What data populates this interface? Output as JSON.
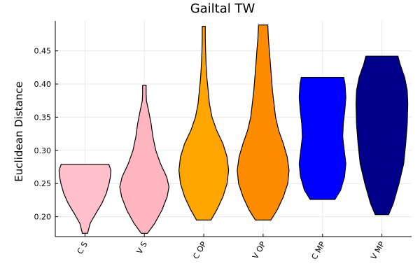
{
  "chart_data": {
    "type": "violin",
    "title": "Gailtal TW",
    "xlabel": "",
    "ylabel": "Euclidean Distance",
    "ylim": [
      0.17,
      0.495
    ],
    "yticks": [
      0.2,
      0.25,
      0.3,
      0.35,
      0.4,
      0.45
    ],
    "ytick_labels": [
      "0.20",
      "0.25",
      "0.30",
      "0.35",
      "0.40",
      "0.45"
    ],
    "grid": true,
    "categories": [
      "C S",
      "V S",
      "C OP",
      "V OP",
      "C MP",
      "V MP"
    ],
    "series": [
      {
        "color": "#ffc0cb",
        "min": 0.175,
        "max": 0.279,
        "profile": [
          [
            0.175,
            0.1
          ],
          [
            0.19,
            0.2
          ],
          [
            0.205,
            0.42
          ],
          [
            0.22,
            0.65
          ],
          [
            0.235,
            0.82
          ],
          [
            0.25,
            0.93
          ],
          [
            0.26,
            0.98
          ],
          [
            0.27,
            1.0
          ],
          [
            0.279,
            0.92
          ]
        ]
      },
      {
        "color": "#ffb6c1",
        "min": 0.175,
        "max": 0.398,
        "profile": [
          [
            0.175,
            0.12
          ],
          [
            0.19,
            0.4
          ],
          [
            0.21,
            0.68
          ],
          [
            0.23,
            0.88
          ],
          [
            0.245,
            0.95
          ],
          [
            0.26,
            0.86
          ],
          [
            0.28,
            0.62
          ],
          [
            0.3,
            0.44
          ],
          [
            0.32,
            0.33
          ],
          [
            0.34,
            0.26
          ],
          [
            0.36,
            0.16
          ],
          [
            0.375,
            0.08
          ],
          [
            0.385,
            0.07
          ],
          [
            0.398,
            0.07
          ]
        ]
      },
      {
        "color": "#ffa500",
        "min": 0.195,
        "max": 0.487,
        "profile": [
          [
            0.195,
            0.28
          ],
          [
            0.21,
            0.5
          ],
          [
            0.23,
            0.74
          ],
          [
            0.25,
            0.9
          ],
          [
            0.27,
            0.96
          ],
          [
            0.29,
            0.9
          ],
          [
            0.31,
            0.74
          ],
          [
            0.33,
            0.5
          ],
          [
            0.35,
            0.32
          ],
          [
            0.37,
            0.22
          ],
          [
            0.39,
            0.17
          ],
          [
            0.41,
            0.12
          ],
          [
            0.43,
            0.09
          ],
          [
            0.45,
            0.07
          ],
          [
            0.47,
            0.06
          ],
          [
            0.487,
            0.06
          ]
        ]
      },
      {
        "color": "#ff8c00",
        "min": 0.195,
        "max": 0.489,
        "profile": [
          [
            0.195,
            0.3
          ],
          [
            0.21,
            0.54
          ],
          [
            0.23,
            0.78
          ],
          [
            0.25,
            0.95
          ],
          [
            0.27,
            1.0
          ],
          [
            0.29,
            0.93
          ],
          [
            0.31,
            0.78
          ],
          [
            0.33,
            0.6
          ],
          [
            0.35,
            0.48
          ],
          [
            0.37,
            0.42
          ],
          [
            0.39,
            0.36
          ],
          [
            0.41,
            0.32
          ],
          [
            0.43,
            0.28
          ],
          [
            0.45,
            0.24
          ],
          [
            0.47,
            0.2
          ],
          [
            0.489,
            0.18
          ]
        ]
      },
      {
        "color": "#0000ff",
        "min": 0.226,
        "max": 0.41,
        "profile": [
          [
            0.226,
            0.48
          ],
          [
            0.24,
            0.7
          ],
          [
            0.26,
            0.85
          ],
          [
            0.28,
            0.9
          ],
          [
            0.3,
            0.84
          ],
          [
            0.32,
            0.78
          ],
          [
            0.34,
            0.8
          ],
          [
            0.36,
            0.86
          ],
          [
            0.38,
            0.9
          ],
          [
            0.4,
            0.87
          ],
          [
            0.41,
            0.82
          ]
        ]
      },
      {
        "color": "#00008b",
        "min": 0.203,
        "max": 0.442,
        "profile": [
          [
            0.203,
            0.26
          ],
          [
            0.22,
            0.44
          ],
          [
            0.25,
            0.66
          ],
          [
            0.28,
            0.84
          ],
          [
            0.31,
            0.92
          ],
          [
            0.34,
            0.98
          ],
          [
            0.37,
            1.0
          ],
          [
            0.39,
            0.98
          ],
          [
            0.41,
            0.88
          ],
          [
            0.43,
            0.7
          ],
          [
            0.442,
            0.62
          ]
        ]
      }
    ]
  }
}
